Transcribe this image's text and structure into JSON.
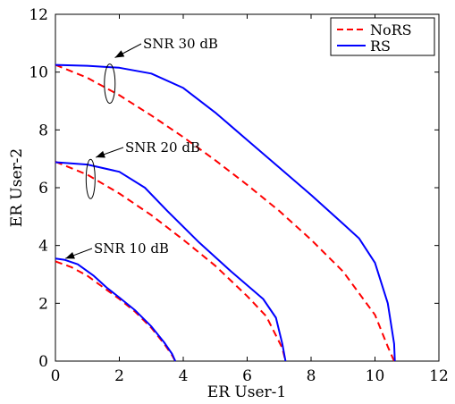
{
  "chart_data": {
    "type": "line",
    "xlabel": "ER User-1",
    "ylabel": "ER User-2",
    "xlim": [
      0,
      12
    ],
    "ylim": [
      0,
      12
    ],
    "xticks": [
      0,
      2,
      4,
      6,
      8,
      10,
      12
    ],
    "yticks": [
      0,
      2,
      4,
      6,
      8,
      10,
      12
    ],
    "grid": false,
    "legend": {
      "placement": "top-right",
      "entries": [
        {
          "label": "NoRS",
          "color": "#ff0000",
          "style": "dashed"
        },
        {
          "label": "RS",
          "color": "#0000ff",
          "style": "solid"
        }
      ]
    },
    "series": [
      {
        "name": "NoRS",
        "group": "SNR 30 dB",
        "color": "#ff0000",
        "style": "dashed",
        "x": [
          0,
          1,
          2,
          3,
          4,
          5,
          6,
          7,
          8,
          9,
          10,
          10.4,
          10.6
        ],
        "y": [
          10.25,
          9.8,
          9.2,
          8.5,
          7.75,
          6.95,
          6.1,
          5.2,
          4.2,
          3.1,
          1.6,
          0.5,
          0
        ]
      },
      {
        "name": "RS",
        "group": "SNR 30 dB",
        "color": "#0000ff",
        "style": "solid",
        "x": [
          0,
          1,
          2,
          3,
          4,
          5,
          6,
          7,
          8,
          9,
          9.5,
          10,
          10.4,
          10.6,
          10.62
        ],
        "y": [
          10.25,
          10.22,
          10.15,
          9.95,
          9.45,
          8.6,
          7.65,
          6.7,
          5.75,
          4.75,
          4.25,
          3.4,
          2,
          0.6,
          0
        ]
      },
      {
        "name": "NoRS",
        "group": "SNR 20 dB",
        "color": "#ff0000",
        "style": "dashed",
        "x": [
          0,
          1,
          2,
          3,
          4,
          5,
          6,
          6.6,
          7.1,
          7.2
        ],
        "y": [
          6.9,
          6.45,
          5.8,
          5.05,
          4.2,
          3.3,
          2.25,
          1.55,
          0.45,
          0
        ]
      },
      {
        "name": "RS",
        "group": "SNR 20 dB",
        "color": "#0000ff",
        "style": "solid",
        "x": [
          0,
          1,
          2,
          2.8,
          3.5,
          4.5,
          5.5,
          6.5,
          6.9,
          7.1,
          7.2
        ],
        "y": [
          6.88,
          6.8,
          6.55,
          6.0,
          5.2,
          4.1,
          3.1,
          2.15,
          1.5,
          0.6,
          0
        ]
      },
      {
        "name": "NoRS",
        "group": "SNR 10 dB",
        "color": "#ff0000",
        "style": "dashed",
        "x": [
          0,
          0.5,
          1,
          1.5,
          2,
          2.5,
          3,
          3.4,
          3.65,
          3.75
        ],
        "y": [
          3.45,
          3.25,
          2.95,
          2.55,
          2.15,
          1.7,
          1.15,
          0.6,
          0.2,
          0
        ]
      },
      {
        "name": "RS",
        "group": "SNR 10 dB",
        "color": "#0000ff",
        "style": "solid",
        "x": [
          0,
          0.3,
          0.7,
          1.2,
          1.6,
          2,
          2.5,
          3,
          3.4,
          3.65,
          3.75
        ],
        "y": [
          3.55,
          3.5,
          3.35,
          2.95,
          2.55,
          2.2,
          1.75,
          1.2,
          0.65,
          0.25,
          0
        ]
      }
    ],
    "annotations": [
      {
        "text": "SNR 30 dB",
        "x": 1.8,
        "y": 10.55
      },
      {
        "text": "SNR 20 dB",
        "x": 1.15,
        "y": 7.1
      },
      {
        "text": "SNR 10 dB",
        "x": 0.35,
        "y": 3.6
      }
    ]
  }
}
